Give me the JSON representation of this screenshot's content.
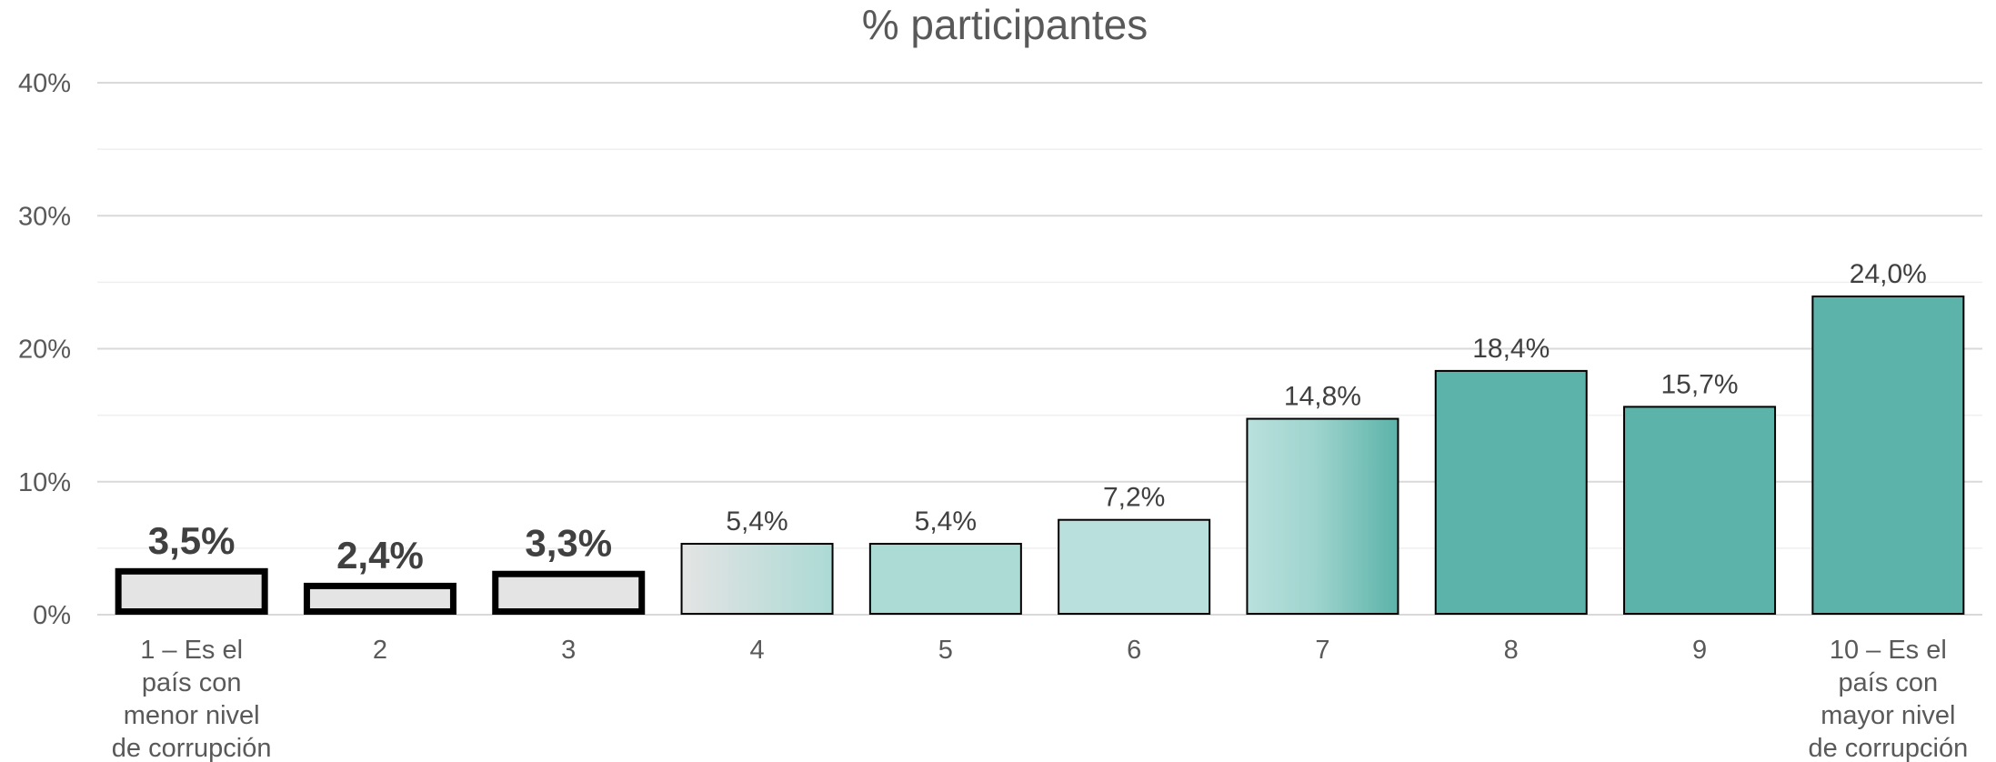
{
  "chart_data": {
    "type": "bar",
    "title": "% participantes",
    "xlabel": "",
    "ylabel": "",
    "ylim": [
      0,
      40
    ],
    "yticks": [
      "0%",
      "10%",
      "20%",
      "30%",
      "40%"
    ],
    "grid": true,
    "categories": [
      "1 – Es el país con menor nivel de corrupción",
      "2",
      "3",
      "4",
      "5",
      "6",
      "7",
      "8",
      "9",
      "10 – Es el país con mayor nivel de corrupción"
    ],
    "values": [
      3.5,
      2.4,
      3.3,
      5.4,
      5.4,
      7.2,
      14.8,
      18.4,
      15.7,
      24.0
    ],
    "value_labels": [
      "3,5%",
      "2,4%",
      "3,3%",
      "5,4%",
      "5,4%",
      "7,2%",
      "14,8%",
      "18,4%",
      "15,7%",
      "24,0%"
    ],
    "colors": {
      "low": "#e4e4e4",
      "mid_light": "#b9e0dc",
      "mid": "#acdad5",
      "high": "#5bb3a9",
      "outline": "#000000"
    }
  }
}
